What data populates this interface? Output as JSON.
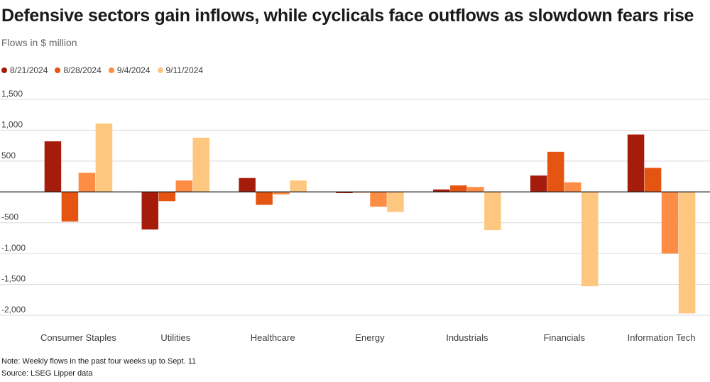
{
  "chart_data": {
    "type": "bar",
    "title": "Defensive sectors gain inflows, while cyclicals face outflows as slowdown fears rise",
    "subtitle": "Flows in $ million",
    "xlabel": "",
    "ylabel": "Flows in $ million",
    "ylim": [
      -2000,
      1500
    ],
    "yticks": [
      1500,
      1000,
      500,
      0,
      -500,
      -1000,
      -1500,
      -2000
    ],
    "ytick_labels": [
      "1,500",
      "1,000",
      "500",
      "",
      "-500",
      "-1,000",
      "-1,500",
      "-2,000"
    ],
    "grid": true,
    "legend_position": "top-left",
    "categories": [
      "Consumer Staples",
      "Utilities",
      "Healthcare",
      "Energy",
      "Industrials",
      "Financials",
      "Information Tech"
    ],
    "series": [
      {
        "name": "8/21/2024",
        "color": "#a51c0b",
        "values": [
          820,
          -610,
          225,
          -20,
          40,
          265,
          930
        ]
      },
      {
        "name": "8/28/2024",
        "color": "#e55410",
        "values": [
          -480,
          -150,
          -210,
          -10,
          105,
          650,
          390
        ]
      },
      {
        "name": "9/4/2024",
        "color": "#fd8d45",
        "values": [
          310,
          185,
          -40,
          -240,
          80,
          155,
          -1000
        ]
      },
      {
        "name": "9/11/2024",
        "color": "#fec77f",
        "values": [
          1110,
          880,
          185,
          -325,
          -620,
          -1530,
          -1970
        ]
      }
    ]
  },
  "footer": {
    "note": "Note: Weekly flows in the past four weeks up to Sept. 11",
    "source": "Source: LSEG Lipper data"
  }
}
